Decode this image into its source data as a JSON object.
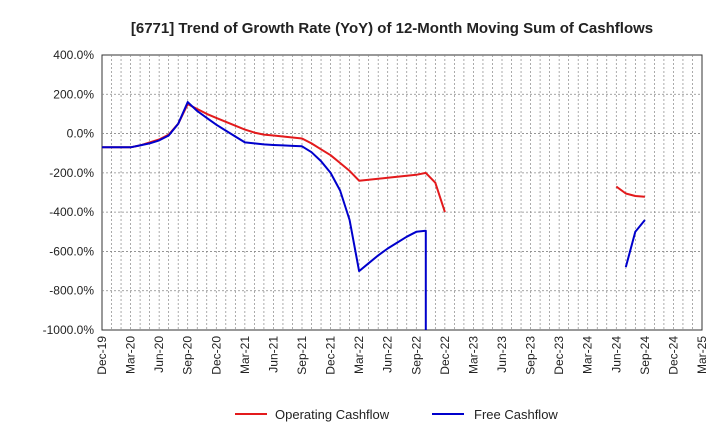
{
  "chart_data": {
    "type": "line",
    "title": "[6771]  Trend of Growth Rate (YoY) of 12-Month Moving Sum of Cashflows",
    "xlabel": "",
    "ylabel": "",
    "ylim": [
      -1000,
      400
    ],
    "y_ticks": [
      "400.0%",
      "200.0%",
      "0.0%",
      "-200.0%",
      "-400.0%",
      "-600.0%",
      "-800.0%",
      "-1000.0%"
    ],
    "x_ticks": [
      "Dec-19",
      "Mar-20",
      "Jun-20",
      "Sep-20",
      "Dec-20",
      "Mar-21",
      "Jun-21",
      "Sep-21",
      "Dec-21",
      "Mar-22",
      "Jun-22",
      "Sep-22",
      "Dec-22",
      "Mar-23",
      "Jun-23",
      "Sep-23",
      "Dec-23",
      "Mar-24",
      "Jun-24",
      "Sep-24",
      "Dec-24",
      "Mar-25"
    ],
    "grid": true,
    "legend_position": "bottom",
    "series": [
      {
        "name": "Operating Cashflow",
        "color": "#e31a1c",
        "points": [
          [
            "2019-12",
            -70
          ],
          [
            "2020-01",
            -70
          ],
          [
            "2020-02",
            -70
          ],
          [
            "2020-03",
            -70
          ],
          [
            "2020-04",
            -60
          ],
          [
            "2020-05",
            -45
          ],
          [
            "2020-06",
            -30
          ],
          [
            "2020-07",
            -5
          ],
          [
            "2020-08",
            50
          ],
          [
            "2020-09",
            150
          ],
          [
            "2020-10",
            125
          ],
          [
            "2020-11",
            100
          ],
          [
            "2020-12",
            80
          ],
          [
            "2021-01",
            60
          ],
          [
            "2021-02",
            40
          ],
          [
            "2021-03",
            20
          ],
          [
            "2021-04",
            5
          ],
          [
            "2021-05",
            -5
          ],
          [
            "2021-06",
            -10
          ],
          [
            "2021-07",
            -15
          ],
          [
            "2021-08",
            -20
          ],
          [
            "2021-09",
            -25
          ],
          [
            "2021-10",
            -50
          ],
          [
            "2021-11",
            -80
          ],
          [
            "2021-12",
            -110
          ],
          [
            "2022-01",
            -150
          ],
          [
            "2022-02",
            -190
          ],
          [
            "2022-03",
            -240
          ],
          [
            "2022-04",
            -235
          ],
          [
            "2022-05",
            -230
          ],
          [
            "2022-06",
            -225
          ],
          [
            "2022-07",
            -220
          ],
          [
            "2022-08",
            -215
          ],
          [
            "2022-09",
            -210
          ],
          [
            "2022-10",
            -200
          ],
          [
            "2022-11",
            -250
          ],
          [
            "2022-12",
            -400
          ],
          null,
          [
            "2024-06",
            -270
          ],
          [
            "2024-07",
            -305
          ],
          [
            "2024-08",
            -318
          ],
          [
            "2024-09",
            -322
          ]
        ]
      },
      {
        "name": "Free Cashflow",
        "color": "#0000cc",
        "points": [
          [
            "2019-12",
            -70
          ],
          [
            "2020-01",
            -70
          ],
          [
            "2020-02",
            -70
          ],
          [
            "2020-03",
            -70
          ],
          [
            "2020-04",
            -60
          ],
          [
            "2020-05",
            -50
          ],
          [
            "2020-06",
            -35
          ],
          [
            "2020-07",
            -10
          ],
          [
            "2020-08",
            50
          ],
          [
            "2020-09",
            160
          ],
          [
            "2020-10",
            115
          ],
          [
            "2020-11",
            80
          ],
          [
            "2020-12",
            45
          ],
          [
            "2021-01",
            15
          ],
          [
            "2021-02",
            -15
          ],
          [
            "2021-03",
            -45
          ],
          [
            "2021-04",
            -50
          ],
          [
            "2021-05",
            -55
          ],
          [
            "2021-06",
            -58
          ],
          [
            "2021-07",
            -60
          ],
          [
            "2021-08",
            -63
          ],
          [
            "2021-09",
            -65
          ],
          [
            "2021-10",
            -95
          ],
          [
            "2021-11",
            -140
          ],
          [
            "2021-12",
            -200
          ],
          [
            "2022-01",
            -290
          ],
          [
            "2022-02",
            -440
          ],
          [
            "2022-03",
            -700
          ],
          [
            "2022-04",
            -660
          ],
          [
            "2022-05",
            -620
          ],
          [
            "2022-06",
            -585
          ],
          [
            "2022-07",
            -555
          ],
          [
            "2022-08",
            -525
          ],
          [
            "2022-09",
            -500
          ],
          [
            "2022-10",
            -495
          ],
          [
            "2022-10",
            -1000
          ],
          null,
          [
            "2024-07",
            -680
          ],
          [
            "2024-08",
            -500
          ],
          [
            "2024-09",
            -440
          ]
        ]
      }
    ]
  }
}
